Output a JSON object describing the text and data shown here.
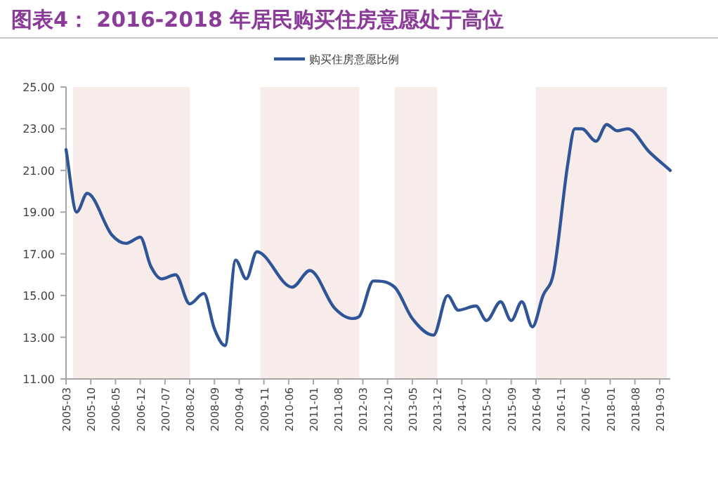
{
  "chart_data": {
    "type": "line",
    "title": "图表4：  2016-2018 年居民购买住房意愿处于高位",
    "x": [
      "2005-03",
      "2005-06",
      "2005-09",
      "2006-04",
      "2006-08",
      "2006-12",
      "2007-03",
      "2007-06",
      "2007-10",
      "2008-02",
      "2008-06",
      "2008-09",
      "2008-12",
      "2009-03",
      "2009-06",
      "2009-09",
      "2010-07",
      "2010-12",
      "2011-07",
      "2011-12",
      "2012-02",
      "2012-06",
      "2012-12",
      "2013-05",
      "2013-11",
      "2014-03",
      "2014-06",
      "2014-11",
      "2015-02",
      "2015-06",
      "2015-09",
      "2015-12",
      "2016-03",
      "2016-06",
      "2016-09",
      "2017-01",
      "2017-03",
      "2017-05",
      "2017-09",
      "2017-12",
      "2018-03",
      "2018-06",
      "2018-12",
      "2019-06"
    ],
    "series": [
      {
        "name": "购买住房意愿比例",
        "color": "#2f5597",
        "values": [
          22.0,
          19.0,
          19.9,
          17.9,
          17.5,
          17.8,
          16.4,
          15.8,
          16.0,
          14.6,
          15.1,
          13.4,
          12.6,
          16.7,
          15.8,
          17.1,
          15.4,
          16.2,
          14.4,
          13.9,
          14.0,
          15.7,
          15.4,
          13.9,
          13.1,
          15.0,
          14.3,
          14.5,
          13.8,
          14.7,
          13.8,
          14.7,
          13.5,
          15.0,
          16.1,
          21.3,
          23.0,
          23.0,
          22.4,
          23.2,
          22.9,
          23.0,
          21.9,
          21.0
        ]
      }
    ],
    "xlim": [
      "2005-03",
      "2019-06"
    ],
    "xticks": [
      "2005-03",
      "2005-10",
      "2006-05",
      "2006-12",
      "2007-07",
      "2008-02",
      "2008-09",
      "2009-04",
      "2009-11",
      "2010-06",
      "2011-01",
      "2011-08",
      "2012-03",
      "2012-10",
      "2013-05",
      "2013-12",
      "2014-07",
      "2015-02",
      "2015-09",
      "2016-04",
      "2016-11",
      "2017-06",
      "2018-01",
      "2018-08",
      "2019-03"
    ],
    "ylim": [
      11,
      25
    ],
    "yticks": [
      {
        "value": 11,
        "label": "11.00"
      },
      {
        "value": 13,
        "label": "13.00"
      },
      {
        "value": 15,
        "label": "15.00"
      },
      {
        "value": 17,
        "label": "17.00"
      },
      {
        "value": 19,
        "label": "19.00"
      },
      {
        "value": 21,
        "label": "21.00"
      },
      {
        "value": 23,
        "label": "23.00"
      },
      {
        "value": 25,
        "label": "25.00"
      }
    ],
    "bands": [
      {
        "axis": "x",
        "from": "2005-05",
        "to": "2008-02",
        "color": "#f8eceb"
      },
      {
        "axis": "x",
        "from": "2009-10",
        "to": "2012-02",
        "color": "#f8eceb"
      },
      {
        "axis": "x",
        "from": "2012-12",
        "to": "2013-12",
        "color": "#f8eceb"
      },
      {
        "axis": "x",
        "from": "2016-04",
        "to": "2019-05",
        "color": "#f8eceb"
      }
    ],
    "legend": "top"
  }
}
